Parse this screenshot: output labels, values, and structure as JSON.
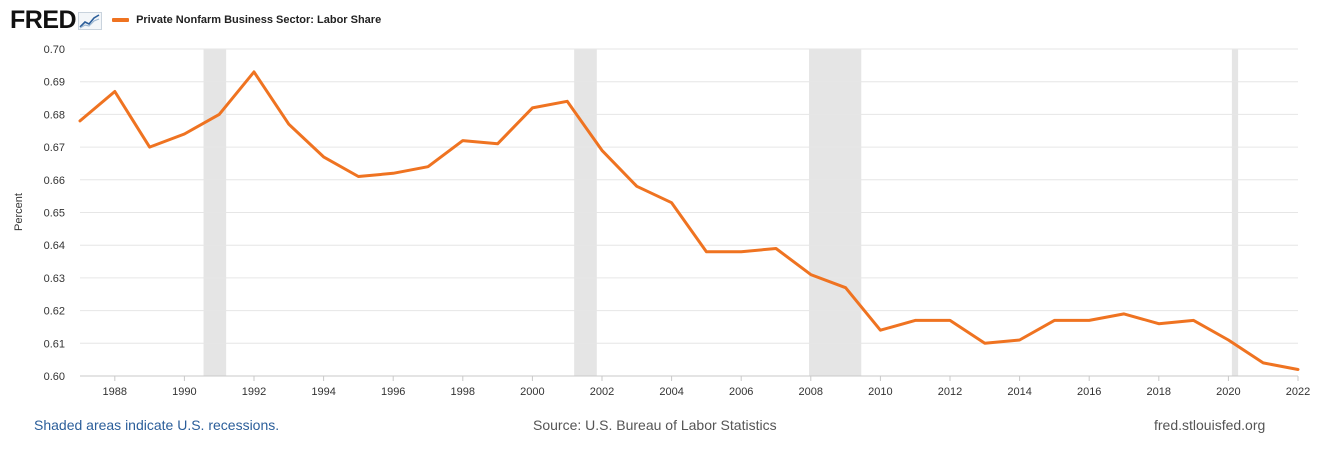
{
  "header": {
    "logo_text": "FRED",
    "logo_icon": "fred-chart-logo-icon",
    "legend_label": "Private Nonfarm Business Sector: Labor Share"
  },
  "footer": {
    "recession_note": "Shaded areas indicate U.S. recessions.",
    "source": "Source: U.S. Bureau of Labor Statistics",
    "site": "fred.stlouisfed.org"
  },
  "colors": {
    "series": "#EF7321",
    "recession": "#E5E5E5",
    "grid": "#E6E6E6",
    "link": "#2B5E9A"
  },
  "chart_data": {
    "type": "line",
    "title": "",
    "xlabel": "",
    "ylabel": "Percent",
    "xlim": [
      1987,
      2022
    ],
    "ylim": [
      0.6,
      0.7
    ],
    "grid": true,
    "legend": "top-left",
    "x_ticks": [
      "1988",
      "1990",
      "1992",
      "1994",
      "1996",
      "1998",
      "2000",
      "2002",
      "2004",
      "2006",
      "2008",
      "2010",
      "2012",
      "2014",
      "2016",
      "2018",
      "2020",
      "2022"
    ],
    "y_ticks": [
      "0.60",
      "0.61",
      "0.62",
      "0.63",
      "0.64",
      "0.65",
      "0.66",
      "0.67",
      "0.68",
      "0.69",
      "0.70"
    ],
    "recessions": [
      {
        "start": 1990.55,
        "end": 1991.2
      },
      {
        "start": 2001.2,
        "end": 2001.85
      },
      {
        "start": 2007.95,
        "end": 2009.45
      },
      {
        "start": 2020.1,
        "end": 2020.28
      }
    ],
    "series": [
      {
        "name": "Private Nonfarm Business Sector: Labor Share",
        "x": [
          1987,
          1988,
          1989,
          1990,
          1991,
          1992,
          1993,
          1994,
          1995,
          1996,
          1997,
          1998,
          1999,
          2000,
          2001,
          2002,
          2003,
          2004,
          2005,
          2006,
          2007,
          2008,
          2009,
          2010,
          2011,
          2012,
          2013,
          2014,
          2015,
          2016,
          2017,
          2018,
          2019,
          2020,
          2021,
          2022
        ],
        "values": [
          0.678,
          0.687,
          0.67,
          0.674,
          0.68,
          0.693,
          0.677,
          0.667,
          0.661,
          0.662,
          0.664,
          0.672,
          0.671,
          0.682,
          0.684,
          0.669,
          0.658,
          0.653,
          0.638,
          0.638,
          0.639,
          0.631,
          0.627,
          0.614,
          0.617,
          0.617,
          0.61,
          0.611,
          0.617,
          0.617,
          0.619,
          0.616,
          0.617,
          0.611,
          0.604,
          0.602
        ]
      }
    ]
  }
}
